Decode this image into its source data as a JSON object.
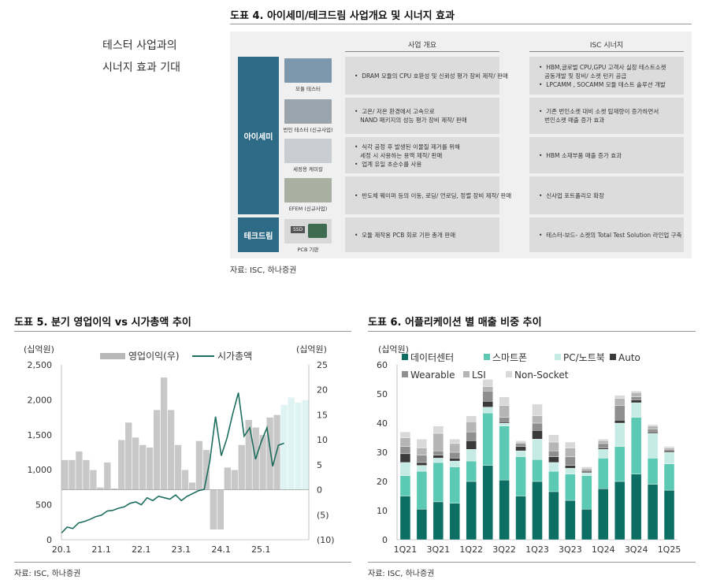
{
  "fig4": {
    "title": "도표 4. 아이세미/테크드림 사업개요 및 시너지 효과",
    "side_line1": "테스터 사업과의",
    "side_line2": "시너지 효과 기대",
    "col_business": "사업 개요",
    "col_synergy": "ISC 시너지",
    "groups": [
      {
        "label": "아이세미"
      },
      {
        "label": "테크드림"
      }
    ],
    "rows": [
      {
        "img_caption": "모듈 테스터",
        "img_color": "#7d97ad",
        "overview": [
          "DRAM 모듈의 CPU 호환성 및 신뢰성 평가 장비 제작/ 판매"
        ],
        "synergy": [
          "HBM,글로벌 CPU,GPU 고객사 실장 테스트소켓",
          "공동개발 및 장비/ 소켓 턴키 공급",
          "LPCAMM , SOCAMM 모듈 테스트 솔루션 개발"
        ]
      },
      {
        "img_caption": "번인 테스터 (신규사업)",
        "img_color": "#9aa4ad",
        "overview": [
          "고온/ 저온 환경에서 고속으로",
          "NAND 패키지의 성능 평가 장비 제작/ 판매"
        ],
        "synergy": [
          "기존 번인소켓 대비 소켓 탑재량이 증가하면서",
          "번인소켓 매출 증가 효과"
        ]
      },
      {
        "img_caption": "세정용 케미칼",
        "img_color": "#c9ccd0",
        "overview": [
          "식각 공정 후 발생된 이물질 제거를 위해",
          "세정 시 사용하는 용액 제작/ 판매",
          "업계 유일 초순수를 사용"
        ],
        "synergy": [
          "HBM 소재부품 매출 증가 효과"
        ]
      },
      {
        "img_caption": "EFEM (신규사업)",
        "img_color": "#a9b0a2",
        "overview": [
          "반도체 웨이퍼 등의 이동, 로딩/ 언로딩, 정렬 장비 제작/ 판매"
        ],
        "synergy": [
          "신사업 포트폴리오 확장"
        ]
      },
      {
        "img_caption": "PCB 기판",
        "img_color": "#d8d8d8",
        "img_label": "SSD",
        "overview": [
          "모듈 제작용 PCB 회로 기판 총개 판매"
        ],
        "synergy": [
          "테스터-보드- 소켓의 Total Test Solution 라인업 구축"
        ]
      }
    ],
    "source": "자료: ISC, 하나증권"
  },
  "fig5": {
    "title": "도표 5. 분기 영업이익 vs 시가총액 추이",
    "left_unit": "(십억원)",
    "right_unit": "(십억원)",
    "legend_bar": "영업이익(우)",
    "legend_line": "시가총액",
    "source": "자료: ISC, 하나증권"
  },
  "fig6": {
    "title": "도표 6. 어플리케이션 별 매출 비중 추이",
    "unit": "(십억원)",
    "source": "자료: ISC, 하나증권"
  },
  "chart_data": [
    {
      "type": "bar+line",
      "title": "도표 5. 분기 영업이익 vs 시가총액 추이",
      "x_ticks": [
        "20.1",
        "21.1",
        "22.1",
        "23.1",
        "24.1",
        "25.1"
      ],
      "left_axis": {
        "label": "(십억원)",
        "ylim": [
          0,
          2500
        ],
        "ticks": [
          "0",
          "500",
          "1,000",
          "1,500",
          "2,000",
          "2,500"
        ]
      },
      "right_axis": {
        "label": "(십억원)",
        "ylim": [
          -10,
          25
        ],
        "ticks": [
          "(10)",
          "(5)",
          "0",
          "5",
          "10",
          "15",
          "20",
          "25"
        ]
      },
      "bar_series": {
        "name": "영업이익(우)",
        "axis": "right",
        "color": "#c8c8c8",
        "forecast_color": "#dff3f3",
        "values": [
          6.0,
          6.0,
          7.7,
          6.0,
          4.0,
          0.5,
          5.5,
          0.3,
          10.0,
          13.5,
          10.5,
          9.0,
          8.5,
          16.0,
          22.5,
          16.0,
          9.0,
          4.0,
          1.5,
          9.8,
          8.0,
          -8.0,
          -8.0,
          4.5,
          4.0,
          9.0,
          14.0,
          12.5,
          11.0,
          14.5,
          15.0,
          17.0,
          18.5,
          17.5,
          18.0
        ],
        "forecast_from_index": 31
      },
      "line_series": {
        "name": "시가총액",
        "axis": "left",
        "color": "#1d6d5e",
        "values": [
          95,
          180,
          160,
          240,
          260,
          290,
          330,
          350,
          410,
          420,
          450,
          470,
          520,
          540,
          500,
          600,
          560,
          620,
          600,
          580,
          640,
          560,
          620,
          660,
          700,
          720,
          1130,
          1760,
          1200,
          1450,
          1800,
          2100,
          1480,
          1600,
          1150,
          1400,
          1600,
          1050,
          1350,
          1380
        ]
      },
      "legend_position": "top"
    },
    {
      "type": "stacked-bar",
      "title": "도표 6. 어플리케이션 별 매출 비중 추이",
      "ylabel": "(십억원)",
      "ylim": [
        0,
        60
      ],
      "y_ticks": [
        0,
        10,
        20,
        30,
        40,
        50,
        60
      ],
      "categories": [
        "1Q21",
        "2Q21",
        "3Q21",
        "4Q21",
        "1Q22",
        "2Q22",
        "3Q22",
        "4Q22",
        "1Q23",
        "2Q23",
        "3Q23",
        "4Q23",
        "1Q24",
        "2Q24",
        "3Q24",
        "4Q24",
        "1Q25"
      ],
      "x_tick_labels": [
        "1Q21",
        "",
        "3Q21",
        "",
        "1Q22",
        "",
        "3Q22",
        "",
        "1Q23",
        "",
        "3Q23",
        "",
        "1Q24",
        "",
        "3Q24",
        "",
        "1Q25"
      ],
      "series": [
        {
          "name": "데이터센터",
          "color": "#0d6f63",
          "values": [
            15.0,
            10.5,
            13.0,
            12.5,
            20.0,
            25.5,
            20.5,
            15.0,
            20.0,
            16.5,
            13.5,
            10.5,
            17.5,
            20.0,
            22.5,
            19.0,
            17.0
          ]
        },
        {
          "name": "스마트폰",
          "color": "#5cc9b4",
          "values": [
            7.0,
            13.0,
            13.5,
            12.5,
            7.0,
            18.0,
            18.5,
            13.5,
            7.5,
            7.0,
            9.0,
            11.5,
            10.5,
            12.0,
            19.5,
            9.0,
            9.0
          ]
        },
        {
          "name": "PC/노트북",
          "color": "#c6ebe4",
          "values": [
            4.5,
            2.0,
            1.5,
            2.0,
            4.0,
            2.0,
            1.0,
            2.0,
            7.0,
            3.0,
            2.0,
            1.0,
            3.0,
            8.0,
            5.0,
            8.5,
            4.0
          ]
        },
        {
          "name": "Auto",
          "color": "#3a3a3a",
          "values": [
            3.0,
            1.0,
            1.0,
            1.0,
            3.0,
            2.0,
            0.5,
            1.5,
            3.0,
            2.0,
            1.0,
            0.5,
            0.5,
            1.0,
            1.0,
            0.5,
            0.5
          ]
        },
        {
          "name": "Wearable",
          "color": "#8f8f8f",
          "values": [
            2.5,
            2.5,
            1.5,
            2.0,
            3.0,
            3.5,
            1.5,
            1.0,
            2.5,
            2.0,
            3.0,
            0.5,
            1.5,
            5.0,
            1.0,
            1.0,
            0.5
          ]
        },
        {
          "name": "LSI",
          "color": "#b5b5b5",
          "values": [
            3.0,
            2.5,
            6.0,
            3.0,
            3.5,
            1.5,
            4.0,
            0.5,
            2.5,
            3.0,
            3.0,
            0.5,
            1.0,
            2.5,
            1.5,
            1.0,
            0.5
          ]
        },
        {
          "name": "Non-Socket",
          "color": "#d9d9d9",
          "values": [
            2.0,
            3.0,
            2.5,
            1.5,
            2.0,
            2.5,
            3.0,
            0.5,
            4.0,
            2.5,
            2.0,
            0.5,
            0.5,
            1.0,
            0.5,
            0.5,
            0.5
          ]
        }
      ],
      "legend_position": "top"
    }
  ]
}
